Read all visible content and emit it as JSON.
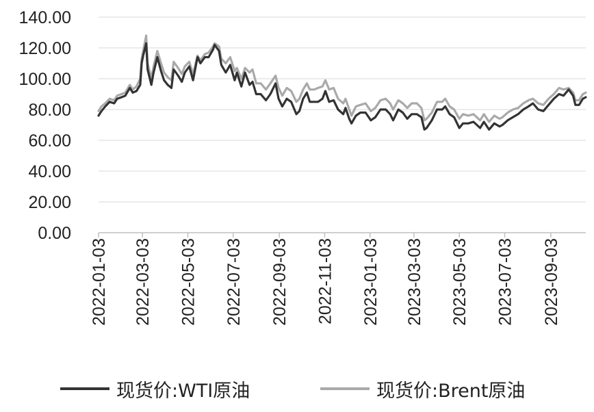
{
  "chart_data": {
    "type": "line",
    "title": "",
    "xlabel": "",
    "ylabel": "",
    "ylim": [
      0,
      140
    ],
    "yticks": [
      "0.00",
      "20.00",
      "40.00",
      "60.00",
      "80.00",
      "100.00",
      "120.00",
      "140.00"
    ],
    "xticks": [
      "2022-01-03",
      "2022-03-03",
      "2022-05-03",
      "2022-07-03",
      "2022-09-03",
      "2022-11-03",
      "2023-01-03",
      "2023-03-03",
      "2023-05-03",
      "2023-07-03",
      "2023-09-03"
    ],
    "x_range": [
      "2022-01-03",
      "2023-10-20"
    ],
    "grid": "horizontal",
    "legend_position": "bottom",
    "series": [
      {
        "name": "现货价:WTI原油",
        "color": "#333333",
        "points": [
          [
            "2022-01-03",
            76
          ],
          [
            "2022-01-07",
            79
          ],
          [
            "2022-01-12",
            82
          ],
          [
            "2022-01-18",
            85
          ],
          [
            "2022-01-24",
            84
          ],
          [
            "2022-01-28",
            87
          ],
          [
            "2022-02-03",
            88
          ],
          [
            "2022-02-08",
            89
          ],
          [
            "2022-02-14",
            94
          ],
          [
            "2022-02-18",
            91
          ],
          [
            "2022-02-23",
            92
          ],
          [
            "2022-02-28",
            96
          ],
          [
            "2022-03-02",
            110
          ],
          [
            "2022-03-04",
            115
          ],
          [
            "2022-03-08",
            123
          ],
          [
            "2022-03-10",
            106
          ],
          [
            "2022-03-15",
            96
          ],
          [
            "2022-03-18",
            104
          ],
          [
            "2022-03-23",
            114
          ],
          [
            "2022-03-28",
            105
          ],
          [
            "2022-04-01",
            99
          ],
          [
            "2022-04-06",
            96
          ],
          [
            "2022-04-11",
            94
          ],
          [
            "2022-04-14",
            106
          ],
          [
            "2022-04-20",
            102
          ],
          [
            "2022-04-25",
            98
          ],
          [
            "2022-04-29",
            104
          ],
          [
            "2022-05-05",
            108
          ],
          [
            "2022-05-10",
            99
          ],
          [
            "2022-05-16",
            114
          ],
          [
            "2022-05-20",
            110
          ],
          [
            "2022-05-26",
            114
          ],
          [
            "2022-05-31",
            114
          ],
          [
            "2022-06-06",
            119
          ],
          [
            "2022-06-08",
            122
          ],
          [
            "2022-06-14",
            118
          ],
          [
            "2022-06-17",
            109
          ],
          [
            "2022-06-23",
            104
          ],
          [
            "2022-06-29",
            109
          ],
          [
            "2022-07-05",
            99
          ],
          [
            "2022-07-08",
            104
          ],
          [
            "2022-07-14",
            95
          ],
          [
            "2022-07-19",
            104
          ],
          [
            "2022-07-25",
            96
          ],
          [
            "2022-07-29",
            98
          ],
          [
            "2022-08-03",
            90
          ],
          [
            "2022-08-09",
            90
          ],
          [
            "2022-08-16",
            86
          ],
          [
            "2022-08-22",
            90
          ],
          [
            "2022-08-29",
            97
          ],
          [
            "2022-09-02",
            87
          ],
          [
            "2022-09-07",
            82
          ],
          [
            "2022-09-13",
            87
          ],
          [
            "2022-09-19",
            85
          ],
          [
            "2022-09-26",
            77
          ],
          [
            "2022-09-30",
            79
          ],
          [
            "2022-10-05",
            87
          ],
          [
            "2022-10-10",
            91
          ],
          [
            "2022-10-14",
            85
          ],
          [
            "2022-10-20",
            85
          ],
          [
            "2022-10-25",
            85
          ],
          [
            "2022-10-31",
            87
          ],
          [
            "2022-11-04",
            92
          ],
          [
            "2022-11-09",
            85
          ],
          [
            "2022-11-15",
            86
          ],
          [
            "2022-11-21",
            80
          ],
          [
            "2022-11-28",
            77
          ],
          [
            "2022-12-01",
            81
          ],
          [
            "2022-12-06",
            74
          ],
          [
            "2022-12-09",
            71
          ],
          [
            "2022-12-15",
            76
          ],
          [
            "2022-12-21",
            78
          ],
          [
            "2022-12-28",
            78
          ],
          [
            "2023-01-04",
            73
          ],
          [
            "2023-01-10",
            75
          ],
          [
            "2023-01-17",
            80
          ],
          [
            "2023-01-24",
            80
          ],
          [
            "2023-01-30",
            77
          ],
          [
            "2023-02-03",
            73
          ],
          [
            "2023-02-10",
            80
          ],
          [
            "2023-02-16",
            78
          ],
          [
            "2023-02-22",
            74
          ],
          [
            "2023-02-28",
            77
          ],
          [
            "2023-03-07",
            77
          ],
          [
            "2023-03-13",
            75
          ],
          [
            "2023-03-17",
            67
          ],
          [
            "2023-03-20",
            68
          ],
          [
            "2023-03-27",
            73
          ],
          [
            "2023-04-03",
            80
          ],
          [
            "2023-04-10",
            80
          ],
          [
            "2023-04-14",
            82
          ],
          [
            "2023-04-20",
            77
          ],
          [
            "2023-04-26",
            75
          ],
          [
            "2023-05-03",
            68
          ],
          [
            "2023-05-08",
            71
          ],
          [
            "2023-05-15",
            71
          ],
          [
            "2023-05-22",
            72
          ],
          [
            "2023-05-31",
            68
          ],
          [
            "2023-06-05",
            72
          ],
          [
            "2023-06-12",
            67
          ],
          [
            "2023-06-19",
            71
          ],
          [
            "2023-06-26",
            69
          ],
          [
            "2023-06-30",
            70
          ],
          [
            "2023-07-07",
            73
          ],
          [
            "2023-07-14",
            75
          ],
          [
            "2023-07-21",
            77
          ],
          [
            "2023-07-28",
            80
          ],
          [
            "2023-08-04",
            82
          ],
          [
            "2023-08-10",
            84
          ],
          [
            "2023-08-17",
            80
          ],
          [
            "2023-08-24",
            79
          ],
          [
            "2023-08-31",
            83
          ],
          [
            "2023-09-07",
            87
          ],
          [
            "2023-09-14",
            90
          ],
          [
            "2023-09-20",
            89
          ],
          [
            "2023-09-27",
            93
          ],
          [
            "2023-10-03",
            89
          ],
          [
            "2023-10-06",
            83
          ],
          [
            "2023-10-11",
            83
          ],
          [
            "2023-10-16",
            87
          ],
          [
            "2023-10-20",
            88
          ]
        ]
      },
      {
        "name": "现货价:Brent原油",
        "color": "#a9a9a9",
        "points": [
          [
            "2022-01-03",
            79
          ],
          [
            "2022-01-07",
            82
          ],
          [
            "2022-01-12",
            84
          ],
          [
            "2022-01-18",
            87
          ],
          [
            "2022-01-24",
            86
          ],
          [
            "2022-01-28",
            89
          ],
          [
            "2022-02-03",
            90
          ],
          [
            "2022-02-08",
            91
          ],
          [
            "2022-02-14",
            96
          ],
          [
            "2022-02-18",
            93
          ],
          [
            "2022-02-23",
            95
          ],
          [
            "2022-02-28",
            100
          ],
          [
            "2022-03-02",
            113
          ],
          [
            "2022-03-04",
            118
          ],
          [
            "2022-03-08",
            128
          ],
          [
            "2022-03-10",
            110
          ],
          [
            "2022-03-15",
            100
          ],
          [
            "2022-03-18",
            108
          ],
          [
            "2022-03-23",
            118
          ],
          [
            "2022-03-28",
            110
          ],
          [
            "2022-04-01",
            104
          ],
          [
            "2022-04-06",
            101
          ],
          [
            "2022-04-11",
            99
          ],
          [
            "2022-04-14",
            111
          ],
          [
            "2022-04-20",
            107
          ],
          [
            "2022-04-25",
            103
          ],
          [
            "2022-04-29",
            108
          ],
          [
            "2022-05-05",
            111
          ],
          [
            "2022-05-10",
            103
          ],
          [
            "2022-05-16",
            115
          ],
          [
            "2022-05-20",
            112
          ],
          [
            "2022-05-26",
            116
          ],
          [
            "2022-05-31",
            117
          ],
          [
            "2022-06-06",
            121
          ],
          [
            "2022-06-08",
            123
          ],
          [
            "2022-06-14",
            121
          ],
          [
            "2022-06-17",
            113
          ],
          [
            "2022-06-23",
            110
          ],
          [
            "2022-06-29",
            114
          ],
          [
            "2022-07-05",
            105
          ],
          [
            "2022-07-08",
            107
          ],
          [
            "2022-07-14",
            100
          ],
          [
            "2022-07-19",
            107
          ],
          [
            "2022-07-25",
            104
          ],
          [
            "2022-07-29",
            106
          ],
          [
            "2022-08-03",
            97
          ],
          [
            "2022-08-09",
            97
          ],
          [
            "2022-08-16",
            93
          ],
          [
            "2022-08-22",
            97
          ],
          [
            "2022-08-29",
            102
          ],
          [
            "2022-09-02",
            94
          ],
          [
            "2022-09-07",
            89
          ],
          [
            "2022-09-13",
            94
          ],
          [
            "2022-09-19",
            92
          ],
          [
            "2022-09-26",
            85
          ],
          [
            "2022-09-30",
            87
          ],
          [
            "2022-10-05",
            93
          ],
          [
            "2022-10-10",
            97
          ],
          [
            "2022-10-14",
            93
          ],
          [
            "2022-10-20",
            93
          ],
          [
            "2022-10-25",
            94
          ],
          [
            "2022-10-31",
            95
          ],
          [
            "2022-11-04",
            99
          ],
          [
            "2022-11-09",
            93
          ],
          [
            "2022-11-15",
            94
          ],
          [
            "2022-11-21",
            87
          ],
          [
            "2022-11-28",
            84
          ],
          [
            "2022-12-01",
            87
          ],
          [
            "2022-12-06",
            80
          ],
          [
            "2022-12-09",
            76
          ],
          [
            "2022-12-15",
            82
          ],
          [
            "2022-12-21",
            83
          ],
          [
            "2022-12-28",
            84
          ],
          [
            "2023-01-04",
            79
          ],
          [
            "2023-01-10",
            81
          ],
          [
            "2023-01-17",
            86
          ],
          [
            "2023-01-24",
            87
          ],
          [
            "2023-01-30",
            84
          ],
          [
            "2023-02-03",
            80
          ],
          [
            "2023-02-10",
            86
          ],
          [
            "2023-02-16",
            84
          ],
          [
            "2023-02-22",
            81
          ],
          [
            "2023-02-28",
            84
          ],
          [
            "2023-03-07",
            84
          ],
          [
            "2023-03-13",
            81
          ],
          [
            "2023-03-17",
            73
          ],
          [
            "2023-03-20",
            74
          ],
          [
            "2023-03-27",
            78
          ],
          [
            "2023-04-03",
            85
          ],
          [
            "2023-04-10",
            85
          ],
          [
            "2023-04-14",
            87
          ],
          [
            "2023-04-20",
            82
          ],
          [
            "2023-04-26",
            80
          ],
          [
            "2023-05-03",
            74
          ],
          [
            "2023-05-08",
            77
          ],
          [
            "2023-05-15",
            76
          ],
          [
            "2023-05-22",
            77
          ],
          [
            "2023-05-31",
            73
          ],
          [
            "2023-06-05",
            77
          ],
          [
            "2023-06-12",
            72
          ],
          [
            "2023-06-19",
            76
          ],
          [
            "2023-06-26",
            74
          ],
          [
            "2023-06-30",
            75
          ],
          [
            "2023-07-07",
            78
          ],
          [
            "2023-07-14",
            80
          ],
          [
            "2023-07-21",
            81
          ],
          [
            "2023-07-28",
            84
          ],
          [
            "2023-08-04",
            86
          ],
          [
            "2023-08-10",
            87
          ],
          [
            "2023-08-17",
            84
          ],
          [
            "2023-08-24",
            83
          ],
          [
            "2023-08-31",
            87
          ],
          [
            "2023-09-07",
            90
          ],
          [
            "2023-09-14",
            94
          ],
          [
            "2023-09-20",
            93
          ],
          [
            "2023-09-27",
            94
          ],
          [
            "2023-10-03",
            91
          ],
          [
            "2023-10-06",
            86
          ],
          [
            "2023-10-11",
            86
          ],
          [
            "2023-10-16",
            90
          ],
          [
            "2023-10-20",
            91
          ]
        ]
      }
    ]
  }
}
